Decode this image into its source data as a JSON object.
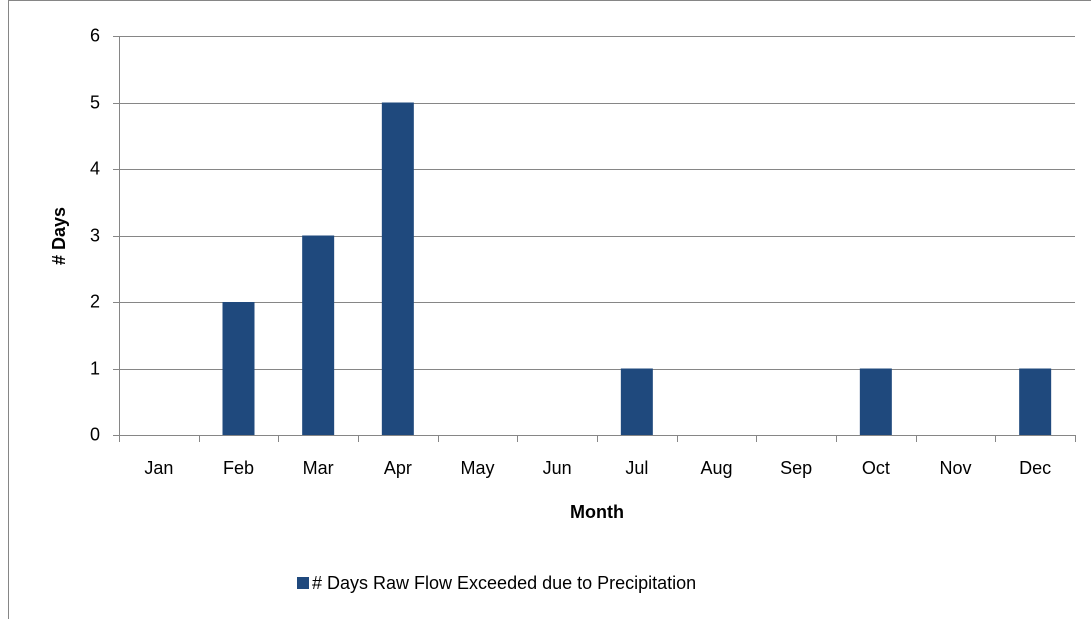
{
  "chart_data": {
    "type": "bar",
    "x_label": "Month",
    "y_label": "# Days",
    "categories": [
      "Jan",
      "Feb",
      "Mar",
      "Apr",
      "May",
      "Jun",
      "Jul",
      "Aug",
      "Sep",
      "Oct",
      "Nov",
      "Dec"
    ],
    "series": [
      {
        "name": "# Days Raw Flow Exceeded due to Precipitation",
        "color": "#1f497d",
        "values": [
          0,
          2,
          3,
          5,
          0,
          0,
          1,
          0,
          0,
          1,
          0,
          1
        ]
      }
    ],
    "ylim": [
      0,
      6
    ],
    "yticks": [
      0,
      1,
      2,
      3,
      4,
      5,
      6
    ],
    "grid": true,
    "legend": "bottom"
  }
}
